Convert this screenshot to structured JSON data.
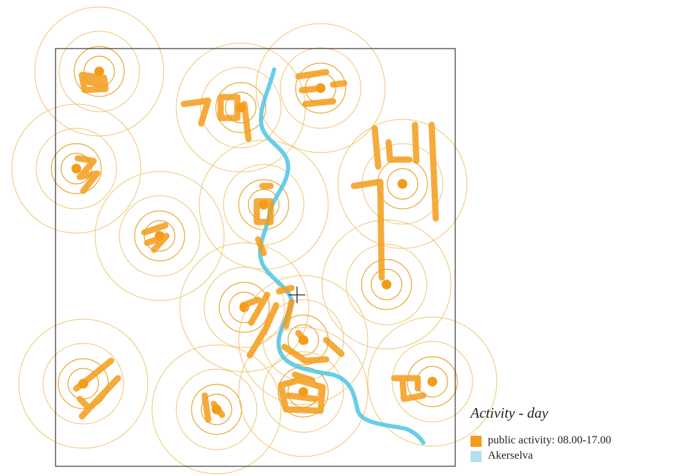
{
  "legend": {
    "title": "Activity - day",
    "items": [
      {
        "label": "public activity: 08.00-17.00"
      },
      {
        "label": "Akerselva"
      }
    ]
  }
}
